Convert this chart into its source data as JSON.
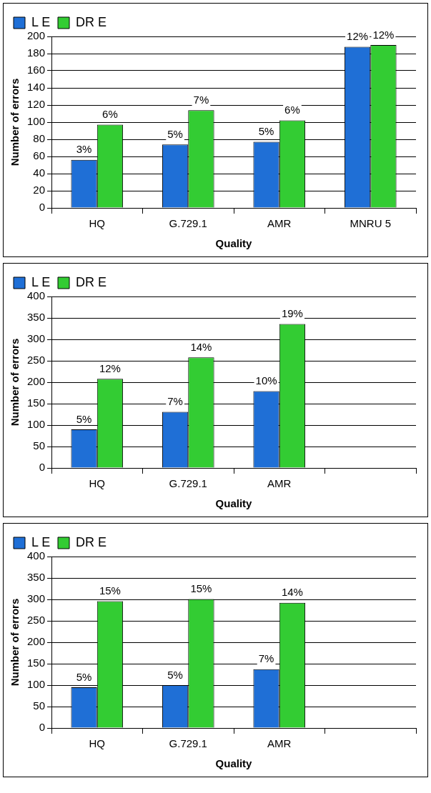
{
  "chart_data": [
    {
      "type": "bar",
      "xlabel": "Quality",
      "ylabel": "Number of errors",
      "categories": [
        "HQ",
        "G.729.1",
        "AMR",
        "MNRU 5"
      ],
      "series": [
        {
          "name": "L E",
          "color": "#1f6fd6",
          "values": [
            56,
            74,
            77,
            188
          ]
        },
        {
          "name": "DR E",
          "color": "#33cc33",
          "values": [
            97,
            114,
            102,
            190
          ]
        }
      ],
      "annotations": [
        {
          "text": "3%",
          "x": "HQ",
          "y": 56
        },
        {
          "text": "5%",
          "x": "G.729.1",
          "y": 74
        },
        {
          "text": "5%",
          "x": "AMR",
          "y": 77
        },
        {
          "text": "12%",
          "x": "MNRU 5",
          "y": 188
        },
        {
          "text": "6%",
          "x": "HQ",
          "y": 97
        },
        {
          "text": "7%",
          "x": "G.729.1",
          "y": 114
        },
        {
          "text": "6%",
          "x": "AMR",
          "y": 102
        },
        {
          "text": "12%",
          "x": "MNRU 5",
          "y": 190
        }
      ],
      "ylim": [
        0,
        200
      ],
      "yticks": [
        0,
        20,
        40,
        60,
        80,
        100,
        120,
        140,
        160,
        180,
        200
      ],
      "grid": "y",
      "legend": "top left"
    },
    {
      "type": "bar",
      "xlabel": "Quality",
      "ylabel": "Number of errors",
      "categories": [
        "HQ",
        "G.729.1",
        "AMR",
        null
      ],
      "series": [
        {
          "name": "L E",
          "color": "#1f6fd6",
          "values": [
            90,
            131,
            179,
            null
          ]
        },
        {
          "name": "DR E",
          "color": "#33cc33",
          "values": [
            208,
            258,
            336,
            null
          ]
        }
      ],
      "annotations": [
        {
          "text": "5%",
          "x": "HQ",
          "y": 90
        },
        {
          "text": "7%",
          "x": "G.729.1",
          "y": 131
        },
        {
          "text": "10%",
          "x": "AMR",
          "y": 179
        },
        {
          "text": "12%",
          "x": "HQ",
          "y": 208
        },
        {
          "text": "14%",
          "x": "G.729.1",
          "y": 258
        },
        {
          "text": "19%",
          "x": "AMR",
          "y": 336
        }
      ],
      "ylim": [
        0,
        400
      ],
      "yticks": [
        0,
        50,
        100,
        150,
        200,
        250,
        300,
        350,
        400
      ],
      "grid": "y",
      "legend": "top left"
    },
    {
      "type": "bar",
      "xlabel": "Quality",
      "ylabel": "Number of errors",
      "categories": [
        "HQ",
        "G.729.1",
        "AMR",
        null
      ],
      "series": [
        {
          "name": "L E",
          "color": "#1f6fd6",
          "values": [
            95,
            100,
            137,
            null
          ]
        },
        {
          "name": "DR E",
          "color": "#33cc33",
          "values": [
            296,
            301,
            292,
            null
          ]
        }
      ],
      "annotations": [
        {
          "text": "5%",
          "x": "HQ",
          "y": 95
        },
        {
          "text": "5%",
          "x": "G.729.1",
          "y": 100
        },
        {
          "text": "7%",
          "x": "AMR",
          "y": 137
        },
        {
          "text": "15%",
          "x": "HQ",
          "y": 296
        },
        {
          "text": "15%",
          "x": "G.729.1",
          "y": 301
        },
        {
          "text": "14%",
          "x": "AMR",
          "y": 292
        }
      ],
      "ylim": [
        0,
        400
      ],
      "yticks": [
        0,
        50,
        100,
        150,
        200,
        250,
        300,
        350,
        400
      ],
      "grid": "y",
      "legend": "top left"
    }
  ]
}
